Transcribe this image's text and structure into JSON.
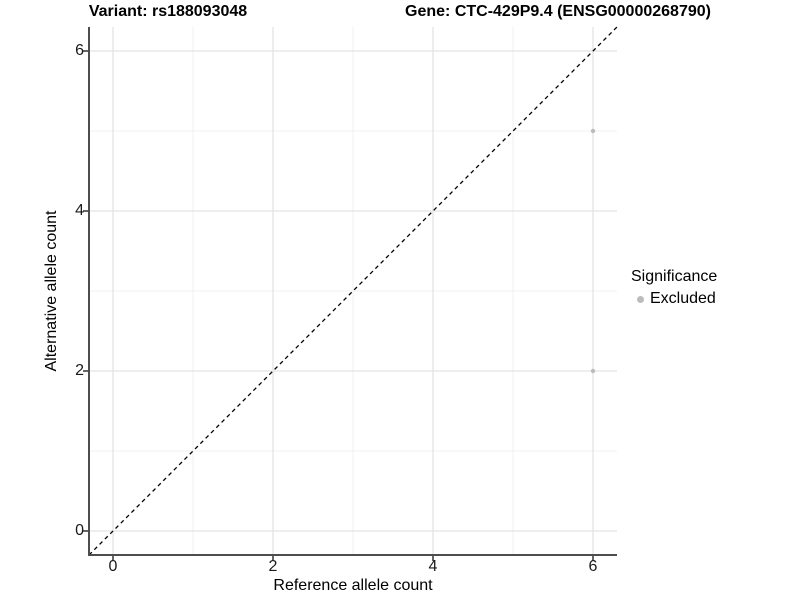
{
  "header": {
    "variant_title": "Variant: rs188093048",
    "gene_title": "Gene: CTC-429P9.4 (ENSG00000268790)"
  },
  "chart_data": {
    "type": "scatter",
    "xlabel": "Reference allele count",
    "ylabel": "Alternative allele count",
    "xlim": [
      -0.3,
      6.3
    ],
    "ylim": [
      -0.3,
      6.3
    ],
    "x_ticks": [
      0,
      2,
      4,
      6
    ],
    "y_ticks": [
      0,
      2,
      4,
      6
    ],
    "x_minor_ticks": [
      1,
      3,
      5
    ],
    "y_minor_ticks": [
      1,
      3,
      5
    ],
    "grid": "major-and-minor",
    "legend_position": "right",
    "series": [
      {
        "name": "Excluded",
        "color": "#bcbcbc",
        "points": [
          [
            6,
            5
          ],
          [
            6,
            2
          ]
        ]
      }
    ],
    "reference_line": {
      "slope": 1,
      "intercept": 0,
      "linetype": "dashed",
      "color": "#000000"
    }
  },
  "legend": {
    "title": "Significance",
    "items": [
      {
        "label": "Excluded",
        "color": "#bcbcbc"
      }
    ]
  },
  "colors": {
    "axis_line": "#4d4d4d",
    "tick_mark": "#333333",
    "grid_major": "#e3e3e3",
    "grid_minor": "#f0f0f0",
    "panel_background": "#ffffff"
  }
}
